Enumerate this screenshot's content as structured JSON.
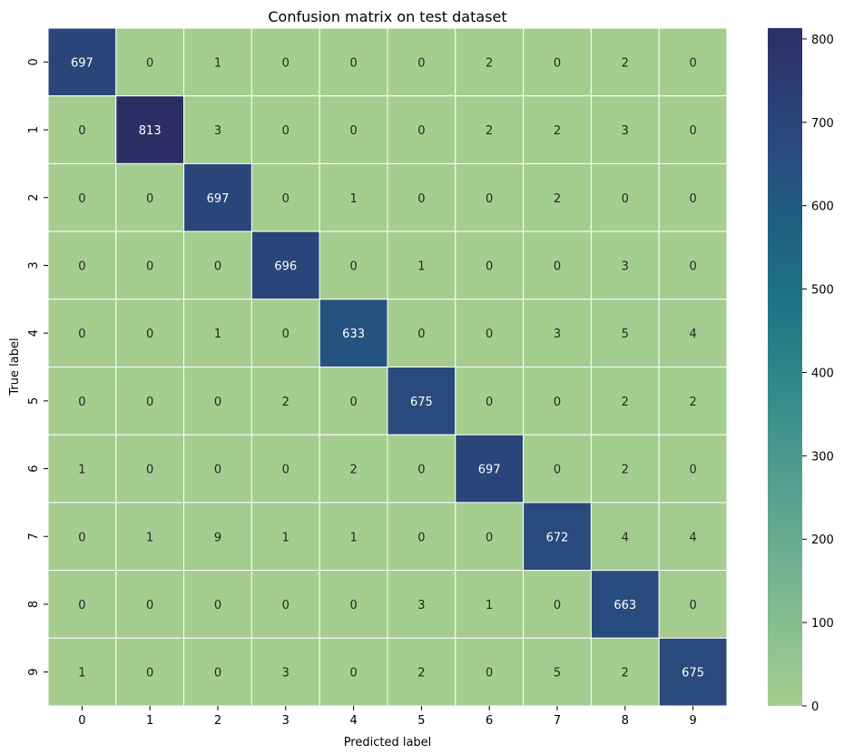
{
  "chart_data": {
    "type": "heatmap",
    "title": "Confusion matrix on test dataset",
    "xlabel": "Predicted label",
    "ylabel": "True label",
    "x_categories": [
      "0",
      "1",
      "2",
      "3",
      "4",
      "5",
      "6",
      "7",
      "8",
      "9"
    ],
    "y_categories": [
      "0",
      "1",
      "2",
      "3",
      "4",
      "5",
      "6",
      "7",
      "8",
      "9"
    ],
    "values": [
      [
        697,
        0,
        1,
        0,
        0,
        0,
        2,
        0,
        2,
        0
      ],
      [
        0,
        813,
        3,
        0,
        0,
        0,
        2,
        2,
        3,
        0
      ],
      [
        0,
        0,
        697,
        0,
        1,
        0,
        0,
        2,
        0,
        0
      ],
      [
        0,
        0,
        0,
        696,
        0,
        1,
        0,
        0,
        3,
        0
      ],
      [
        0,
        0,
        1,
        0,
        633,
        0,
        0,
        3,
        5,
        4
      ],
      [
        0,
        0,
        0,
        2,
        0,
        675,
        0,
        0,
        2,
        2
      ],
      [
        1,
        0,
        0,
        0,
        2,
        0,
        697,
        0,
        2,
        0
      ],
      [
        0,
        1,
        9,
        1,
        1,
        0,
        0,
        672,
        4,
        4
      ],
      [
        0,
        0,
        0,
        0,
        0,
        3,
        1,
        0,
        663,
        0
      ],
      [
        1,
        0,
        0,
        3,
        0,
        2,
        0,
        5,
        2,
        675
      ]
    ],
    "colormap": "crest",
    "color_range": [
      0,
      813
    ],
    "colorbar_ticks": [
      0,
      100,
      200,
      300,
      400,
      500,
      600,
      700,
      800
    ],
    "colorbar_stops": [
      "#a5cd90",
      "#8bc190",
      "#73b290",
      "#5aa38f",
      "#42948d",
      "#2b8589",
      "#1d7385",
      "#1e6182",
      "#274f7f",
      "#2c3e74",
      "#2c2f66"
    ],
    "annotation_colors": {
      "light_bg": "#262626",
      "dark_bg": "#ffffff"
    },
    "grid_line_color": "#ffffff"
  }
}
